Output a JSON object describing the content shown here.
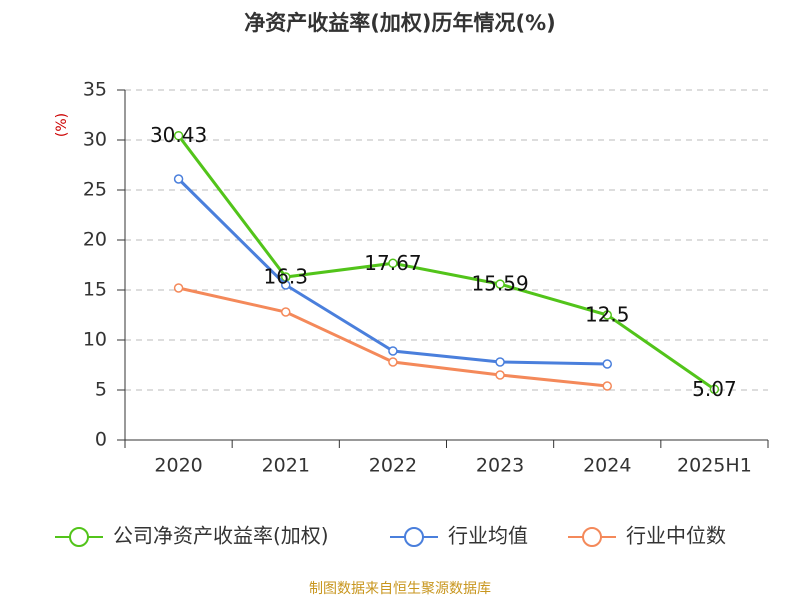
{
  "chart_data": {
    "type": "line",
    "title": "净资产收益率(加权)历年情况(%)",
    "y_label": "(%)",
    "source": "制图数据来自恒生聚源数据库",
    "categories": [
      "2020",
      "2021",
      "2022",
      "2023",
      "2024",
      "2025H1"
    ],
    "series": [
      {
        "name": "公司净资产收益率(加权)",
        "color": "#52c41a",
        "values": [
          30.43,
          16.3,
          17.67,
          15.59,
          12.5,
          5.07
        ],
        "show_labels": true
      },
      {
        "name": "行业均值",
        "color": "#4a7fdc",
        "values": [
          26.1,
          15.5,
          8.9,
          7.8,
          7.6,
          null
        ],
        "show_labels": false
      },
      {
        "name": "行业中位数",
        "color": "#f4895a",
        "values": [
          15.2,
          12.8,
          7.8,
          6.5,
          5.4,
          null
        ],
        "show_labels": false
      }
    ],
    "ylim": [
      0,
      35
    ],
    "yticks": [
      0,
      5,
      10,
      15,
      20,
      25,
      30,
      35
    ],
    "grid": true,
    "legend": "bottom"
  }
}
